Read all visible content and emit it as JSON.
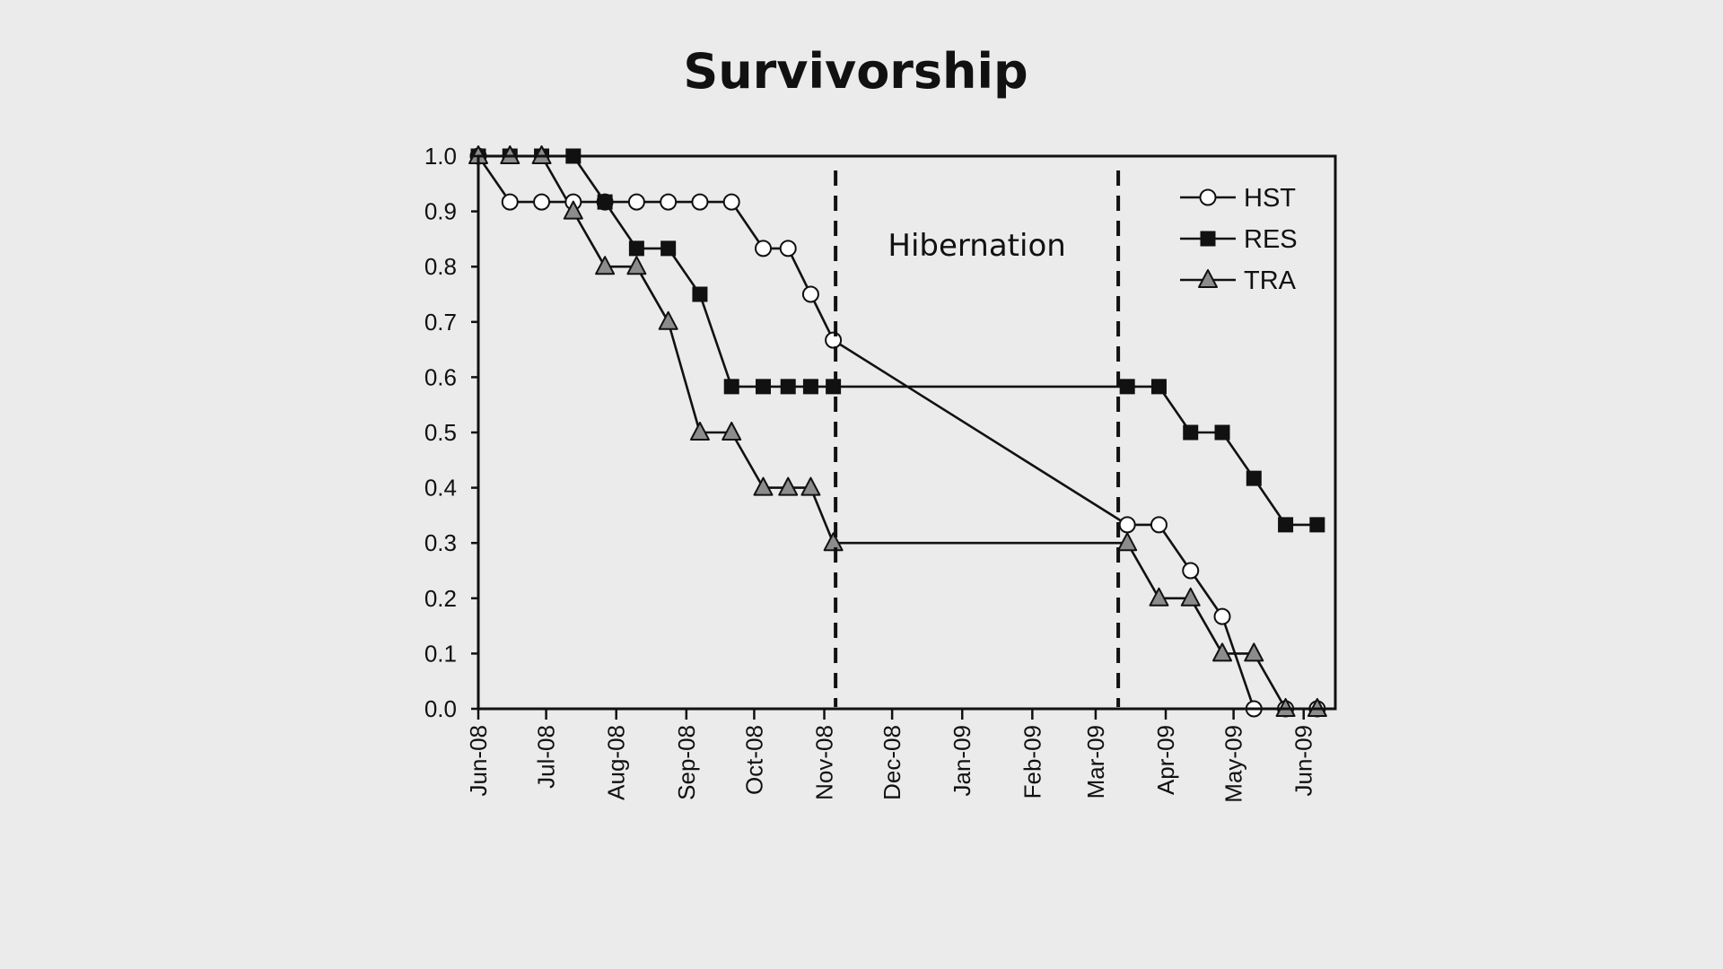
{
  "chart_data": {
    "type": "line",
    "title": "Survivorship",
    "xlabel": "",
    "ylabel": "",
    "ylim": [
      0,
      1.0
    ],
    "y_ticks": [
      "0.0",
      "0.1",
      "0.2",
      "0.3",
      "0.4",
      "0.5",
      "0.6",
      "0.7",
      "0.8",
      "0.9",
      "1.0"
    ],
    "x_range": [
      "2008-06-01",
      "2009-06-15"
    ],
    "x_ticks": [
      {
        "date": "2008-06-01",
        "label": "Jun-08"
      },
      {
        "date": "2008-07-01",
        "label": "Jul-08"
      },
      {
        "date": "2008-08-01",
        "label": "Aug-08"
      },
      {
        "date": "2008-09-01",
        "label": "Sep-08"
      },
      {
        "date": "2008-10-01",
        "label": "Oct-08"
      },
      {
        "date": "2008-11-01",
        "label": "Nov-08"
      },
      {
        "date": "2008-12-01",
        "label": "Dec-08"
      },
      {
        "date": "2009-01-01",
        "label": "Jan-09"
      },
      {
        "date": "2009-02-01",
        "label": "Feb-09"
      },
      {
        "date": "2009-03-01",
        "label": "Mar-09"
      },
      {
        "date": "2009-04-01",
        "label": "Apr-09"
      },
      {
        "date": "2009-05-01",
        "label": "May-09"
      },
      {
        "date": "2009-06-01",
        "label": "Jun-09"
      }
    ],
    "grid": false,
    "legend": "top-right",
    "annotations": [
      {
        "text": "Hibernation",
        "x_start": "2008-11-06",
        "x_end": "2009-03-11",
        "style": "dashed vertical lines"
      }
    ],
    "series": [
      {
        "name": "HST",
        "marker": "circle-open",
        "color": "#ffffff",
        "points": [
          {
            "x": "2008-06-01",
            "y": 1.0
          },
          {
            "x": "2008-06-15",
            "y": 0.917
          },
          {
            "x": "2008-06-29",
            "y": 0.917
          },
          {
            "x": "2008-07-13",
            "y": 0.917
          },
          {
            "x": "2008-07-27",
            "y": 0.917
          },
          {
            "x": "2008-08-10",
            "y": 0.917
          },
          {
            "x": "2008-08-24",
            "y": 0.917
          },
          {
            "x": "2008-09-07",
            "y": 0.917
          },
          {
            "x": "2008-09-21",
            "y": 0.917
          },
          {
            "x": "2008-10-05",
            "y": 0.833
          },
          {
            "x": "2008-10-16",
            "y": 0.833
          },
          {
            "x": "2008-10-26",
            "y": 0.75
          },
          {
            "x": "2008-11-05",
            "y": 0.667
          },
          {
            "x": "2009-03-15",
            "y": 0.333
          },
          {
            "x": "2009-03-29",
            "y": 0.333
          },
          {
            "x": "2009-04-12",
            "y": 0.25
          },
          {
            "x": "2009-04-26",
            "y": 0.167
          },
          {
            "x": "2009-05-10",
            "y": 0.0
          },
          {
            "x": "2009-05-24",
            "y": 0.0
          },
          {
            "x": "2009-06-07",
            "y": 0.0
          }
        ]
      },
      {
        "name": "RES",
        "marker": "square-filled",
        "color": "#111111",
        "points": [
          {
            "x": "2008-06-01",
            "y": 1.0
          },
          {
            "x": "2008-06-15",
            "y": 1.0
          },
          {
            "x": "2008-06-29",
            "y": 1.0
          },
          {
            "x": "2008-07-13",
            "y": 1.0
          },
          {
            "x": "2008-07-27",
            "y": 0.917
          },
          {
            "x": "2008-08-10",
            "y": 0.833
          },
          {
            "x": "2008-08-24",
            "y": 0.833
          },
          {
            "x": "2008-09-07",
            "y": 0.75
          },
          {
            "x": "2008-09-21",
            "y": 0.583
          },
          {
            "x": "2008-10-05",
            "y": 0.583
          },
          {
            "x": "2008-10-16",
            "y": 0.583
          },
          {
            "x": "2008-10-26",
            "y": 0.583
          },
          {
            "x": "2008-11-05",
            "y": 0.583
          },
          {
            "x": "2009-03-15",
            "y": 0.583
          },
          {
            "x": "2009-03-29",
            "y": 0.583
          },
          {
            "x": "2009-04-12",
            "y": 0.5
          },
          {
            "x": "2009-04-26",
            "y": 0.5
          },
          {
            "x": "2009-05-10",
            "y": 0.417
          },
          {
            "x": "2009-05-24",
            "y": 0.333
          },
          {
            "x": "2009-06-07",
            "y": 0.333
          }
        ]
      },
      {
        "name": "TRA",
        "marker": "triangle-gray",
        "color": "#8c8c8c",
        "points": [
          {
            "x": "2008-06-01",
            "y": 1.0
          },
          {
            "x": "2008-06-15",
            "y": 1.0
          },
          {
            "x": "2008-06-29",
            "y": 1.0
          },
          {
            "x": "2008-07-13",
            "y": 0.9
          },
          {
            "x": "2008-07-27",
            "y": 0.8
          },
          {
            "x": "2008-08-10",
            "y": 0.8
          },
          {
            "x": "2008-08-24",
            "y": 0.7
          },
          {
            "x": "2008-09-07",
            "y": 0.5
          },
          {
            "x": "2008-09-21",
            "y": 0.5
          },
          {
            "x": "2008-10-05",
            "y": 0.4
          },
          {
            "x": "2008-10-16",
            "y": 0.4
          },
          {
            "x": "2008-10-26",
            "y": 0.4
          },
          {
            "x": "2008-11-05",
            "y": 0.3
          },
          {
            "x": "2009-03-15",
            "y": 0.3
          },
          {
            "x": "2009-03-29",
            "y": 0.2
          },
          {
            "x": "2009-04-12",
            "y": 0.2
          },
          {
            "x": "2009-04-26",
            "y": 0.1
          },
          {
            "x": "2009-05-10",
            "y": 0.1
          },
          {
            "x": "2009-05-24",
            "y": 0.0
          },
          {
            "x": "2009-06-07",
            "y": 0.0
          }
        ]
      }
    ]
  }
}
